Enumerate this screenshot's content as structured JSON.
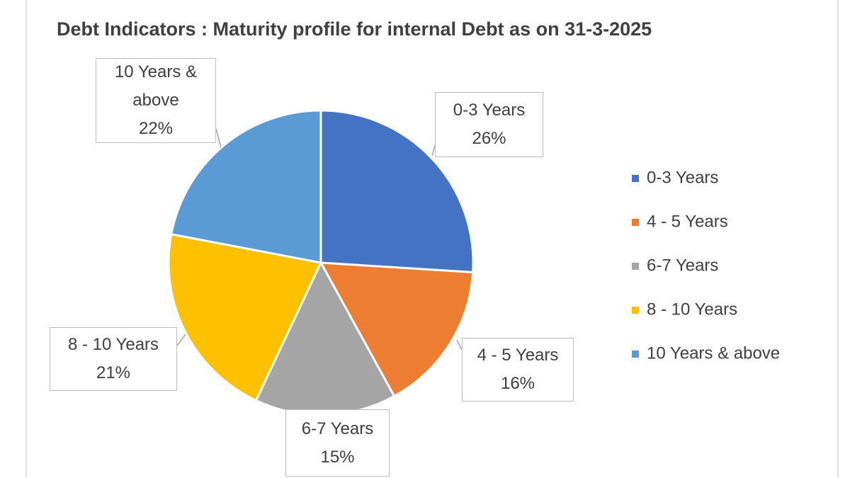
{
  "chart_data": {
    "type": "pie",
    "title": "Debt Indicators : Maturity profile for internal Debt as on 31-3-2025",
    "categories": [
      "0-3 Years",
      "4 - 5 Years",
      "6-7 Years",
      "8 - 10 Years",
      "10 Years & above"
    ],
    "values": [
      26,
      16,
      15,
      21,
      22
    ],
    "value_labels": [
      "26%",
      "16%",
      "15%",
      "21%",
      "22%"
    ],
    "colors": [
      "#4472c4",
      "#ed7d31",
      "#a5a5a5",
      "#ffc000",
      "#5b9bd5"
    ],
    "legend": "right"
  }
}
